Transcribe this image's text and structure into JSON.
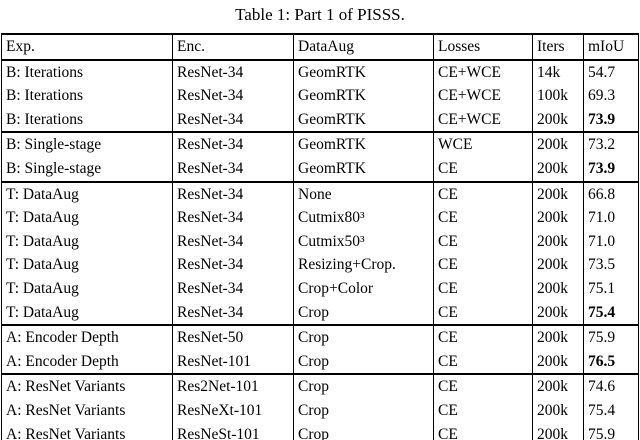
{
  "title": "Table 1: Part 1 of PISSS.",
  "columns": [
    "Exp.",
    "Enc.",
    "DataAug",
    "Losses",
    "Iters",
    "mIoU"
  ],
  "colors": {
    "text": "#000000",
    "background": "#ffffff",
    "border": "#000000"
  },
  "groups": [
    {
      "rows": [
        {
          "exp": "B: Iterations",
          "enc": "ResNet-34",
          "dataaug": "GeomRTK",
          "losses": "CE+WCE",
          "iters": "14k",
          "miou": "54.7",
          "miou_bold": false
        },
        {
          "exp": "B: Iterations",
          "enc": "ResNet-34",
          "dataaug": "GeomRTK",
          "losses": "CE+WCE",
          "iters": "100k",
          "miou": "69.3",
          "miou_bold": false
        },
        {
          "exp": "B: Iterations",
          "enc": "ResNet-34",
          "dataaug": "GeomRTK",
          "losses": "CE+WCE",
          "iters": "200k",
          "miou": "73.9",
          "miou_bold": true
        }
      ]
    },
    {
      "rows": [
        {
          "exp": "B: Single-stage",
          "enc": "ResNet-34",
          "dataaug": "GeomRTK",
          "losses": "WCE",
          "iters": "200k",
          "miou": "73.2",
          "miou_bold": false
        },
        {
          "exp": "B: Single-stage",
          "enc": "ResNet-34",
          "dataaug": "GeomRTK",
          "losses": "CE",
          "iters": "200k",
          "miou": "73.9",
          "miou_bold": true
        }
      ]
    },
    {
      "rows": [
        {
          "exp": "T: DataAug",
          "enc": "ResNet-34",
          "dataaug": "None",
          "losses": "CE",
          "iters": "200k",
          "miou": "66.8",
          "miou_bold": false
        },
        {
          "exp": "T: DataAug",
          "enc": "ResNet-34",
          "dataaug": "Cutmix80³",
          "losses": "CE",
          "iters": "200k",
          "miou": "71.0",
          "miou_bold": false
        },
        {
          "exp": "T: DataAug",
          "enc": "ResNet-34",
          "dataaug": "Cutmix50³",
          "losses": "CE",
          "iters": "200k",
          "miou": "71.0",
          "miou_bold": false
        },
        {
          "exp": "T: DataAug",
          "enc": "ResNet-34",
          "dataaug": "Resizing+Crop.",
          "losses": "CE",
          "iters": "200k",
          "miou": "73.5",
          "miou_bold": false
        },
        {
          "exp": "T: DataAug",
          "enc": "ResNet-34",
          "dataaug": "Crop+Color",
          "losses": "CE",
          "iters": "200k",
          "miou": "75.1",
          "miou_bold": false
        },
        {
          "exp": "T: DataAug",
          "enc": "ResNet-34",
          "dataaug": "Crop",
          "losses": "CE",
          "iters": "200k",
          "miou": "75.4",
          "miou_bold": true
        }
      ]
    },
    {
      "rows": [
        {
          "exp": "A: Encoder Depth",
          "enc": "ResNet-50",
          "dataaug": "Crop",
          "losses": "CE",
          "iters": "200k",
          "miou": "75.9",
          "miou_bold": false
        },
        {
          "exp": "A: Encoder Depth",
          "enc": "ResNet-101",
          "dataaug": "Crop",
          "losses": "CE",
          "iters": "200k",
          "miou": "76.5",
          "miou_bold": true
        }
      ]
    },
    {
      "rows": [
        {
          "exp": "A: ResNet Variants",
          "enc": "Res2Net-101",
          "dataaug": "Crop",
          "losses": "CE",
          "iters": "200k",
          "miou": "74.6",
          "miou_bold": false
        },
        {
          "exp": "A: ResNet Variants",
          "enc": "ResNeXt-101",
          "dataaug": "Crop",
          "losses": "CE",
          "iters": "200k",
          "miou": "75.4",
          "miou_bold": false
        },
        {
          "exp": "A: ResNet Variants",
          "enc": "ResNeSt-101",
          "dataaug": "Crop",
          "losses": "CE",
          "iters": "200k",
          "miou": "75.9",
          "miou_bold": false
        }
      ]
    }
  ]
}
